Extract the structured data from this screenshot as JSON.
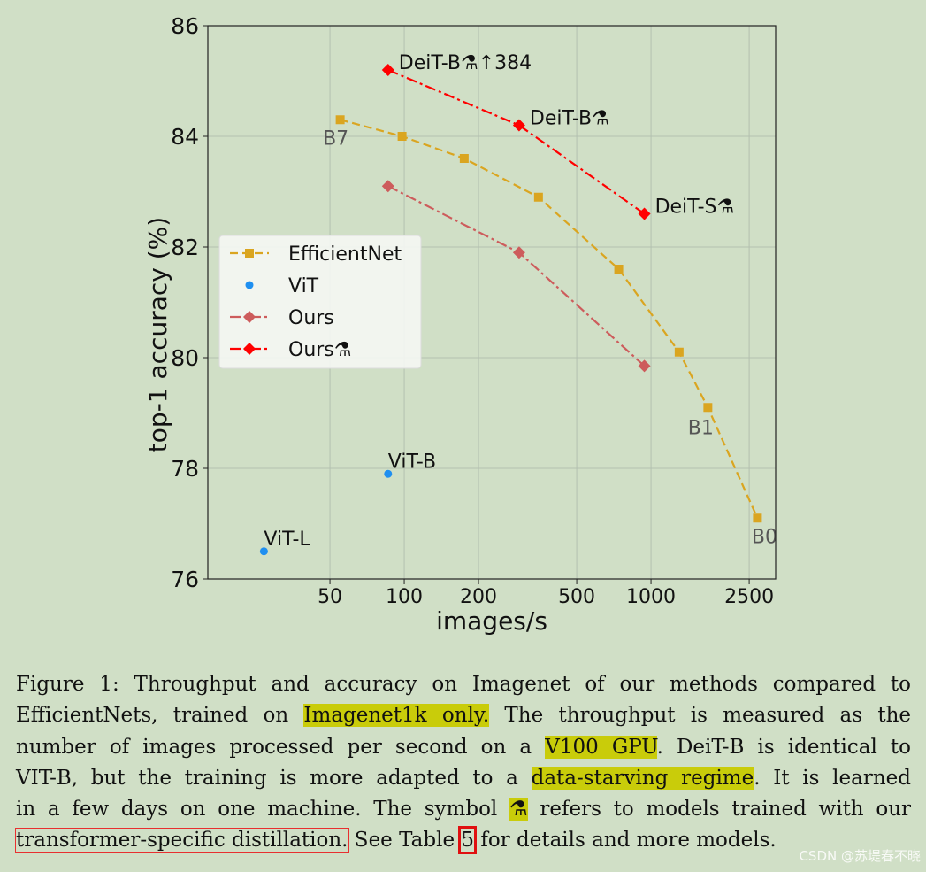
{
  "chart_data": {
    "type": "line",
    "x_scale": "log",
    "xlabel": "images/s",
    "ylabel": "top-1 accuracy (%)",
    "xlim": [
      16,
      3200
    ],
    "ylim": [
      76,
      86
    ],
    "x_ticks": [
      50,
      100,
      200,
      500,
      1000,
      2500
    ],
    "y_ticks": [
      76,
      78,
      80,
      82,
      84,
      86
    ],
    "grid": true,
    "legend_position": "center-left",
    "series": [
      {
        "name": "EfficientNet",
        "color": "#daa520",
        "line": "dashed",
        "marker": "square",
        "points": [
          {
            "x": 55,
            "y": 84.3,
            "label": "B7"
          },
          {
            "x": 98,
            "y": 84.0
          },
          {
            "x": 175,
            "y": 83.6
          },
          {
            "x": 350,
            "y": 82.9
          },
          {
            "x": 740,
            "y": 81.6
          },
          {
            "x": 1300,
            "y": 80.1
          },
          {
            "x": 1700,
            "y": 79.1,
            "label": "B1"
          },
          {
            "x": 2700,
            "y": 77.1,
            "label": "B0"
          }
        ]
      },
      {
        "name": "ViT",
        "color": "#1f8ff0",
        "line": "none",
        "marker": "circle",
        "points": [
          {
            "x": 86,
            "y": 77.9,
            "label": "ViT-B"
          },
          {
            "x": 27,
            "y": 76.5,
            "label": "ViT-L"
          }
        ]
      },
      {
        "name": "Ours",
        "color": "#cd5c5c",
        "line": "dashdot",
        "marker": "diamond",
        "points": [
          {
            "x": 86,
            "y": 83.1
          },
          {
            "x": 292,
            "y": 81.9
          },
          {
            "x": 940,
            "y": 79.85
          }
        ]
      },
      {
        "name": "Ours⚗",
        "color": "#ff0000",
        "line": "dashdot",
        "marker": "diamond",
        "points": [
          {
            "x": 86,
            "y": 85.2,
            "label": "DeiT-B⚗↑384"
          },
          {
            "x": 292,
            "y": 84.2,
            "label": "DeiT-B⚗"
          },
          {
            "x": 940,
            "y": 82.6,
            "label": "DeiT-S⚗"
          }
        ]
      }
    ]
  },
  "caption": {
    "lines": [
      [
        {
          "text": "Figure 1: Throughput and accuracy on Imagenet of our methods compared to"
        }
      ],
      [
        {
          "text": "EfficientNets, trained on "
        },
        {
          "text": "Imagenet1k only.",
          "style": "highlight"
        },
        {
          "text": " The throughput is measured as the"
        }
      ],
      [
        {
          "text": "number of images processed per second on a "
        },
        {
          "text": "V100 GPU",
          "style": "highlight"
        },
        {
          "text": ". DeiT-B is identical to"
        }
      ],
      [
        {
          "text": "VIT-B, but the training is more adapted to a "
        },
        {
          "text": "data-starving regime",
          "style": "highlight"
        },
        {
          "text": ". It is learned"
        }
      ],
      [
        {
          "text": "in a few days on one machine. The symbol "
        },
        {
          "text": "⚗",
          "style": "highlight"
        },
        {
          "text": " refers to models trained with our"
        }
      ],
      [
        {
          "text": "transformer-specific distillation.",
          "style": "boxed"
        },
        {
          "text": " See Table "
        },
        {
          "text": "5",
          "style": "boxed-red"
        },
        {
          "text": " for details and more models."
        }
      ]
    ]
  },
  "watermark": "CSDN @苏堤春不晓"
}
